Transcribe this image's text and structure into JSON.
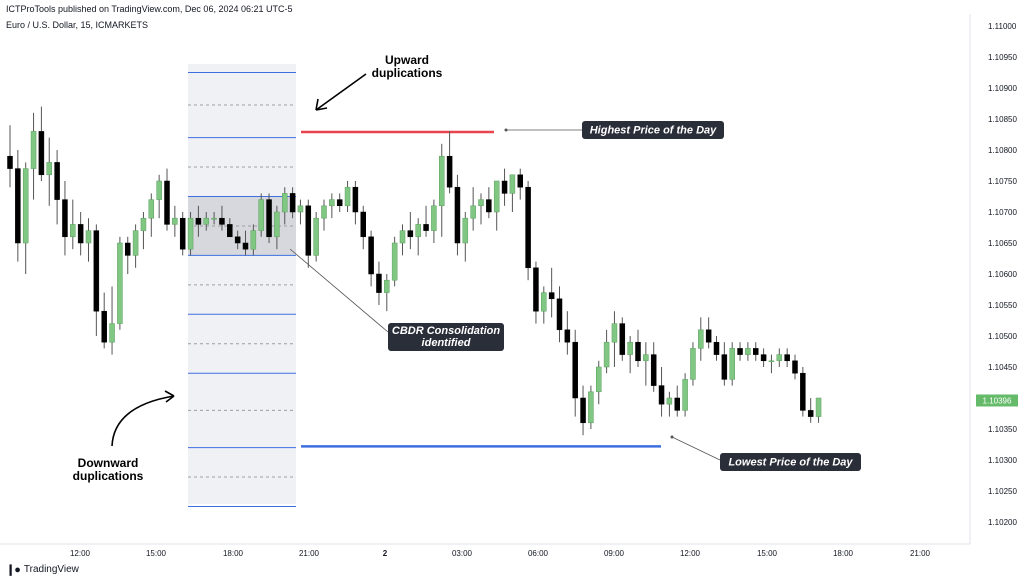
{
  "header": {
    "published": "ICTProTools published on TradingView.com, Dec 06, 2024 06:21 UTC-5",
    "symbol": "Euro / U.S. Dollar, 15, ICMARKETS"
  },
  "footer": {
    "brand": "TradingView",
    "logo_icon": "tradingview-logo-icon"
  },
  "colors": {
    "up": "#81c784",
    "down": "#000000",
    "wick": "#555555",
    "high_line": "#e8454f",
    "low_line": "#3d6fe0",
    "box_line": "#3d6fe0",
    "grid_dash": "#9e9e9e",
    "price_tag": "#66bb6a"
  },
  "chart_data": {
    "type": "candlestick",
    "y_axis_labels": [
      "1.11000",
      "1.10950",
      "1.10900",
      "1.10850",
      "1.10800",
      "1.10750",
      "1.10700",
      "1.10650",
      "1.10600",
      "1.10550",
      "1.10500",
      "1.10450",
      "1.10400",
      "1.10350",
      "1.10300",
      "1.10250",
      "1.10200"
    ],
    "ylim": [
      1.1019,
      1.1102
    ],
    "x_axis_labels": [
      "12:00",
      "15:00",
      "18:00",
      "21:00",
      "2",
      "03:00",
      "06:00",
      "09:00",
      "12:00",
      "15:00",
      "18:00",
      "21:00"
    ],
    "last_price": "1.10396",
    "levels": {
      "highest_price": 1.10829,
      "lowest_price": 1.10322
    },
    "cbdr_box": {
      "high": 1.10725,
      "low": 1.1063
    },
    "upward_duplications": [
      1.1082,
      1.10925
    ],
    "downward_duplications": [
      1.10535,
      1.1044,
      1.1032,
      1.10225
    ],
    "annotations": {
      "highest_label": "Highest Price of the Day",
      "lowest_label": "Lowest Price of the Day",
      "cbdr_label_line1": "CBDR Consolidation",
      "cbdr_label_line2": "identified",
      "upward_label_line1": "Upward",
      "upward_label_line2": "duplications",
      "downward_label_line1": "Downward",
      "downward_label_line2": "duplications"
    },
    "candles": [
      [
        1.1079,
        1.1084,
        1.1074,
        1.1077
      ],
      [
        1.1077,
        1.108,
        1.1062,
        1.1065
      ],
      [
        1.1065,
        1.1078,
        1.106,
        1.1077
      ],
      [
        1.1077,
        1.1086,
        1.1072,
        1.1083
      ],
      [
        1.1083,
        1.1087,
        1.1075,
        1.1076
      ],
      [
        1.1076,
        1.1082,
        1.1071,
        1.1078
      ],
      [
        1.1078,
        1.108,
        1.1068,
        1.1072
      ],
      [
        1.1072,
        1.1075,
        1.1063,
        1.1066
      ],
      [
        1.1066,
        1.1072,
        1.1064,
        1.1068
      ],
      [
        1.1068,
        1.107,
        1.1063,
        1.1065
      ],
      [
        1.1065,
        1.1069,
        1.1062,
        1.1067
      ],
      [
        1.1067,
        1.1068,
        1.105,
        1.1054
      ],
      [
        1.1054,
        1.1057,
        1.1048,
        1.1049
      ],
      [
        1.1049,
        1.1058,
        1.1047,
        1.1052
      ],
      [
        1.1052,
        1.1066,
        1.1051,
        1.1065
      ],
      [
        1.1065,
        1.1066,
        1.106,
        1.1063
      ],
      [
        1.1063,
        1.1068,
        1.1061,
        1.1067
      ],
      [
        1.1067,
        1.107,
        1.1064,
        1.1069
      ],
      [
        1.1069,
        1.1073,
        1.1066,
        1.1072
      ],
      [
        1.1072,
        1.1076,
        1.1069,
        1.1075
      ],
      [
        1.1075,
        1.1077,
        1.1067,
        1.1068
      ],
      [
        1.1068,
        1.1071,
        1.1066,
        1.1069
      ],
      [
        1.1069,
        1.107,
        1.1063,
        1.1064
      ],
      [
        1.1064,
        1.107,
        1.1063,
        1.1069
      ],
      [
        1.1069,
        1.1071,
        1.1066,
        1.1068
      ],
      [
        1.1068,
        1.107,
        1.1067,
        1.1069
      ],
      [
        1.1069,
        1.107,
        1.1068,
        1.1069
      ],
      [
        1.1069,
        1.1071,
        1.1067,
        1.1068
      ],
      [
        1.1068,
        1.1069,
        1.1066,
        1.1066
      ],
      [
        1.1066,
        1.1067,
        1.1064,
        1.1065
      ],
      [
        1.1065,
        1.1067,
        1.1063,
        1.1064
      ],
      [
        1.1064,
        1.1068,
        1.1063,
        1.1067
      ],
      [
        1.1067,
        1.1073,
        1.1066,
        1.1072
      ],
      [
        1.1072,
        1.1073,
        1.1065,
        1.1066
      ],
      [
        1.1066,
        1.1071,
        1.1064,
        1.107
      ],
      [
        1.107,
        1.1074,
        1.1068,
        1.1073
      ],
      [
        1.1073,
        1.1074,
        1.1069,
        1.107
      ],
      [
        1.107,
        1.1072,
        1.1068,
        1.1071
      ],
      [
        1.1071,
        1.1072,
        1.1061,
        1.1063
      ],
      [
        1.1063,
        1.107,
        1.1062,
        1.1069
      ],
      [
        1.1069,
        1.1072,
        1.1067,
        1.1071
      ],
      [
        1.1071,
        1.1073,
        1.1069,
        1.1072
      ],
      [
        1.1072,
        1.1073,
        1.107,
        1.1071
      ],
      [
        1.1071,
        1.1075,
        1.107,
        1.1074
      ],
      [
        1.1074,
        1.1075,
        1.1068,
        1.107
      ],
      [
        1.107,
        1.1071,
        1.1064,
        1.1066
      ],
      [
        1.1066,
        1.1067,
        1.1058,
        1.106
      ],
      [
        1.106,
        1.1062,
        1.1055,
        1.1057
      ],
      [
        1.1057,
        1.106,
        1.1054,
        1.1059
      ],
      [
        1.1059,
        1.1066,
        1.1058,
        1.1065
      ],
      [
        1.1065,
        1.1068,
        1.1063,
        1.1067
      ],
      [
        1.1067,
        1.107,
        1.1064,
        1.1066
      ],
      [
        1.1066,
        1.1069,
        1.1063,
        1.1068
      ],
      [
        1.1068,
        1.1071,
        1.1066,
        1.1067
      ],
      [
        1.1067,
        1.1072,
        1.1065,
        1.1071
      ],
      [
        1.1071,
        1.1081,
        1.1066,
        1.1079
      ],
      [
        1.1079,
        1.1083,
        1.1073,
        1.1074
      ],
      [
        1.1074,
        1.1076,
        1.1063,
        1.1065
      ],
      [
        1.1065,
        1.107,
        1.1062,
        1.1069
      ],
      [
        1.1069,
        1.1074,
        1.1067,
        1.1071
      ],
      [
        1.1071,
        1.1073,
        1.1068,
        1.1072
      ],
      [
        1.1072,
        1.1074,
        1.1069,
        1.107
      ],
      [
        1.107,
        1.1075,
        1.1067,
        1.1075
      ],
      [
        1.1075,
        1.1077,
        1.1071,
        1.1073
      ],
      [
        1.1073,
        1.1076,
        1.107,
        1.1076
      ],
      [
        1.1076,
        1.1077,
        1.1072,
        1.1074
      ],
      [
        1.1074,
        1.1075,
        1.1059,
        1.1061
      ],
      [
        1.1061,
        1.1062,
        1.1052,
        1.1054
      ],
      [
        1.1054,
        1.1058,
        1.1052,
        1.1057
      ],
      [
        1.1057,
        1.1061,
        1.1053,
        1.1056
      ],
      [
        1.1056,
        1.1058,
        1.1049,
        1.1051
      ],
      [
        1.1051,
        1.1054,
        1.1047,
        1.1049
      ],
      [
        1.1049,
        1.1051,
        1.1037,
        1.104
      ],
      [
        1.104,
        1.1042,
        1.1034,
        1.1036
      ],
      [
        1.1036,
        1.1042,
        1.1035,
        1.1041
      ],
      [
        1.1041,
        1.1046,
        1.1039,
        1.1045
      ],
      [
        1.1045,
        1.1051,
        1.1044,
        1.1049
      ],
      [
        1.1049,
        1.1054,
        1.1045,
        1.1052
      ],
      [
        1.1052,
        1.1053,
        1.1046,
        1.1047
      ],
      [
        1.1047,
        1.105,
        1.1044,
        1.1049
      ],
      [
        1.1049,
        1.1051,
        1.1045,
        1.1046
      ],
      [
        1.1046,
        1.1049,
        1.1042,
        1.1047
      ],
      [
        1.1047,
        1.1049,
        1.1041,
        1.1042
      ],
      [
        1.1042,
        1.1045,
        1.1037,
        1.1039
      ],
      [
        1.1039,
        1.1041,
        1.1037,
        1.104
      ],
      [
        1.104,
        1.1042,
        1.1037,
        1.1038
      ],
      [
        1.1038,
        1.1044,
        1.1037,
        1.1043
      ],
      [
        1.1043,
        1.1049,
        1.1042,
        1.1048
      ],
      [
        1.1048,
        1.1053,
        1.1046,
        1.1051
      ],
      [
        1.1051,
        1.1053,
        1.1048,
        1.1049
      ],
      [
        1.1049,
        1.105,
        1.1046,
        1.1047
      ],
      [
        1.1047,
        1.1049,
        1.1042,
        1.1043
      ],
      [
        1.1043,
        1.1049,
        1.1042,
        1.1048
      ],
      [
        1.1048,
        1.1049,
        1.1046,
        1.1047
      ],
      [
        1.1047,
        1.1049,
        1.1046,
        1.1048
      ],
      [
        1.1048,
        1.1049,
        1.1046,
        1.1047
      ],
      [
        1.1047,
        1.1048,
        1.1045,
        1.1046
      ],
      [
        1.1046,
        1.1047,
        1.1044,
        1.1046
      ],
      [
        1.1046,
        1.1048,
        1.1045,
        1.1047
      ],
      [
        1.1047,
        1.1048,
        1.1045,
        1.1046
      ],
      [
        1.1046,
        1.1047,
        1.1043,
        1.1044
      ],
      [
        1.1044,
        1.1045,
        1.1037,
        1.1038
      ],
      [
        1.1038,
        1.104,
        1.1036,
        1.1037
      ],
      [
        1.1037,
        1.104,
        1.1036,
        1.104
      ]
    ]
  }
}
